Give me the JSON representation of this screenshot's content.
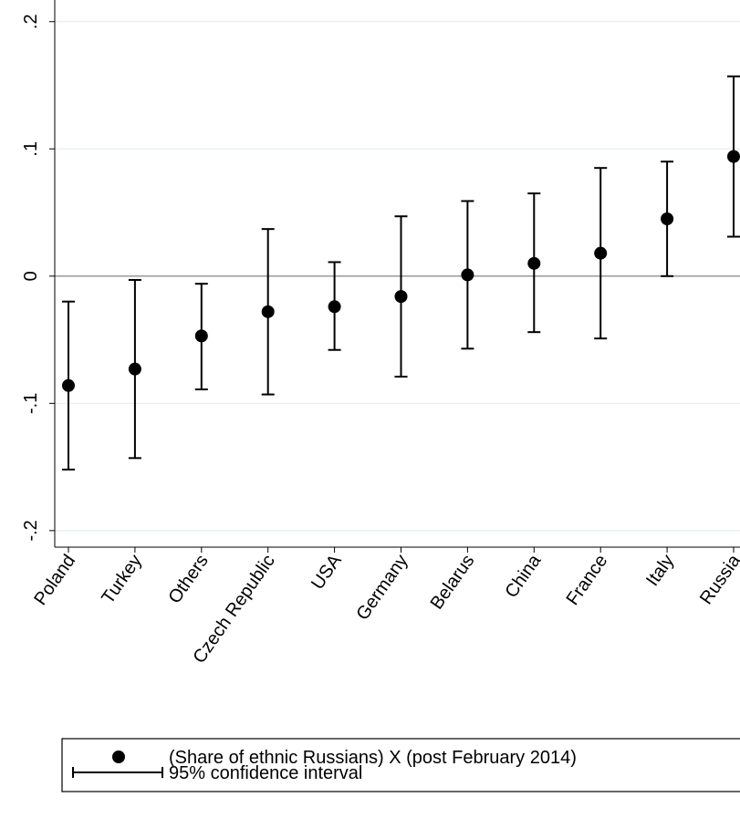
{
  "chart_data": {
    "type": "coefplot",
    "categories": [
      "Poland",
      "Turkey",
      "Others",
      "Czech Republic",
      "USA",
      "Germany",
      "Belarus",
      "China",
      "France",
      "Italy",
      "Russia"
    ],
    "series": [
      {
        "name": "(Share of ethnic Russians) X (post February 2014)",
        "color": "#000000",
        "values": [
          -0.086,
          -0.073,
          -0.047,
          -0.028,
          -0.024,
          -0.016,
          0.001,
          0.01,
          0.018,
          0.045,
          0.094
        ],
        "lower": [
          -0.152,
          -0.143,
          -0.089,
          -0.093,
          -0.058,
          -0.079,
          -0.057,
          -0.044,
          -0.049,
          0.0,
          0.031
        ],
        "upper": [
          -0.02,
          -0.003,
          -0.006,
          0.037,
          0.011,
          0.047,
          0.059,
          0.065,
          0.085,
          0.09,
          0.157
        ]
      }
    ],
    "ci_label": "95% confidence interval",
    "ylim": [
      -0.213,
      0.217
    ],
    "yticks": [
      {
        "value": -0.2,
        "label": "-.2"
      },
      {
        "value": -0.1,
        "label": "-.1"
      },
      0,
      {
        "value": 0.1,
        "label": ".1"
      },
      {
        "value": 0.2,
        "label": ".2"
      }
    ],
    "reference_line": 0,
    "grid": true
  }
}
